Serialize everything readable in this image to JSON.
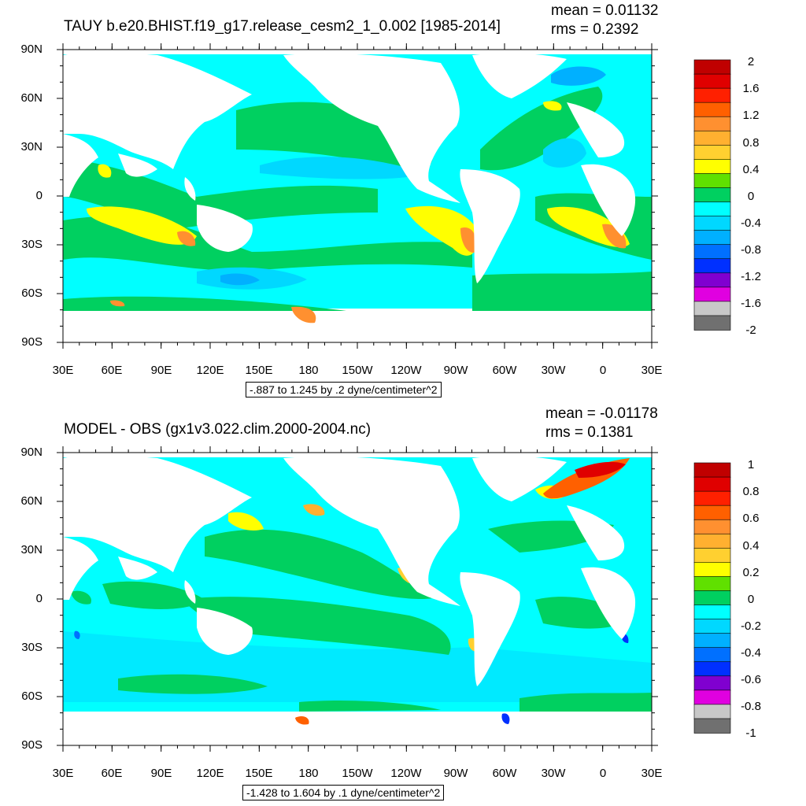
{
  "panels": [
    {
      "title": "TAUY b.e20.BHIST.f19_g17.release_cesm2_1_0.002 [1985-2014]",
      "mean_label": "mean = 0.01132",
      "rms_label": "rms = 0.2392",
      "contour_info": "-.887 to 1.245 by .2 dyne/centimeter^2",
      "lat_labels": [
        "90N",
        "60N",
        "30N",
        "0",
        "30S",
        "60S",
        "90S"
      ],
      "lon_labels": [
        "30E",
        "60E",
        "90E",
        "120E",
        "150E",
        "180",
        "150W",
        "120W",
        "90W",
        "60W",
        "30W",
        "0",
        "30E"
      ],
      "colorbar": {
        "labels": [
          "2",
          "1.6",
          "1.2",
          "0.8",
          "0.4",
          "0",
          "-0.4",
          "-0.8",
          "-1.2",
          "-1.6",
          "-2"
        ],
        "colors": [
          "#c00000",
          "#e00000",
          "#ff2000",
          "#ff6000",
          "#ff9030",
          "#ffb030",
          "#ffd030",
          "#ffff00",
          "#60e000",
          "#00d060",
          "#00ffff",
          "#00d8ff",
          "#00b0ff",
          "#0070ff",
          "#0030ff",
          "#8000d0",
          "#e000e0",
          "#c8c8c8",
          "#707070"
        ]
      }
    },
    {
      "title": "MODEL - OBS (gx1v3.022.clim.2000-2004.nc)",
      "mean_label": "mean = -0.01178",
      "rms_label": "rms = 0.1381",
      "contour_info": "-1.428 to 1.604 by .1 dyne/centimeter^2",
      "lat_labels": [
        "90N",
        "60N",
        "30N",
        "0",
        "30S",
        "60S",
        "90S"
      ],
      "lon_labels": [
        "30E",
        "60E",
        "90E",
        "120E",
        "150E",
        "180",
        "150W",
        "120W",
        "90W",
        "60W",
        "30W",
        "0",
        "30E"
      ],
      "colorbar": {
        "labels": [
          "1",
          "0.8",
          "0.6",
          "0.4",
          "0.2",
          "0",
          "-0.2",
          "-0.4",
          "-0.6",
          "-0.8",
          "-1"
        ],
        "colors": [
          "#c00000",
          "#e00000",
          "#ff2000",
          "#ff6000",
          "#ff9030",
          "#ffb030",
          "#ffd030",
          "#ffff00",
          "#60e000",
          "#00d060",
          "#00ffff",
          "#00d8ff",
          "#00b0ff",
          "#0070ff",
          "#0030ff",
          "#8000d0",
          "#e000e0",
          "#c8c8c8",
          "#707070"
        ]
      }
    }
  ]
}
